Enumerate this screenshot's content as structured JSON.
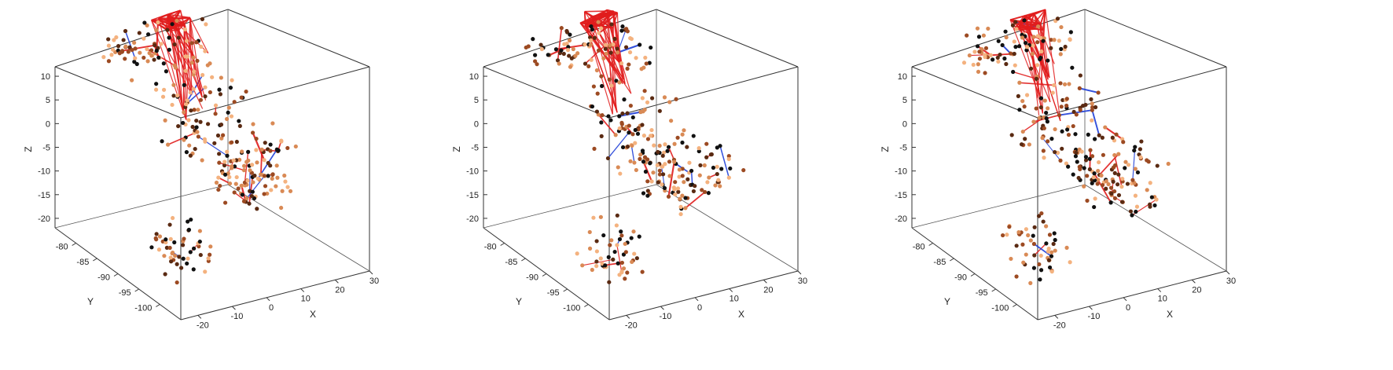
{
  "chart_data": [
    {
      "type": "scatter",
      "projection": "3d",
      "xlabel": "X",
      "ylabel": "Y",
      "zlabel": "Z",
      "xlim": [
        -25,
        30
      ],
      "ylim": [
        -105,
        -75
      ],
      "zlim": [
        -22,
        12
      ],
      "xticks": [
        "-20",
        "-10",
        "0",
        "10",
        "20",
        "30"
      ],
      "yticks": [
        "-80",
        "-85",
        "-90",
        "-95",
        "-100"
      ],
      "zticks": [
        "10",
        "5",
        "0",
        "-5",
        "-10",
        "-15",
        "-20"
      ],
      "node_colors": [
        "#111111",
        "#5a2a12",
        "#9c4a22",
        "#d98a55",
        "#f4b27f"
      ],
      "edge_colors": {
        "positive": "#e11d1d",
        "negative": "#1f3fd8"
      },
      "hub_strength": 1.0,
      "seed": 11
    },
    {
      "type": "scatter",
      "projection": "3d",
      "xlabel": "X",
      "ylabel": "Y",
      "zlabel": "Z",
      "xlim": [
        -25,
        30
      ],
      "ylim": [
        -105,
        -75
      ],
      "zlim": [
        -22,
        12
      ],
      "xticks": [
        "-20",
        "-10",
        "0",
        "10",
        "20",
        "30"
      ],
      "yticks": [
        "-80",
        "-85",
        "-90",
        "-95",
        "-100"
      ],
      "zticks": [
        "10",
        "5",
        "0",
        "-5",
        "-10",
        "-15",
        "-20"
      ],
      "node_colors": [
        "#111111",
        "#5a2a12",
        "#9c4a22",
        "#d98a55",
        "#f4b27f"
      ],
      "edge_colors": {
        "positive": "#e11d1d",
        "negative": "#1f3fd8"
      },
      "hub_strength": 0.85,
      "seed": 23
    },
    {
      "type": "scatter",
      "projection": "3d",
      "xlabel": "X",
      "ylabel": "Y",
      "zlabel": "Z",
      "xlim": [
        -25,
        30
      ],
      "ylim": [
        -105,
        -75
      ],
      "zlim": [
        -22,
        12
      ],
      "xticks": [
        "-20",
        "-10",
        "0",
        "10",
        "20",
        "30"
      ],
      "yticks": [
        "-80",
        "-85",
        "-90",
        "-95",
        "-100"
      ],
      "zticks": [
        "10",
        "5",
        "0",
        "-5",
        "-10",
        "-15",
        "-20"
      ],
      "node_colors": [
        "#111111",
        "#5a2a12",
        "#9c4a22",
        "#d98a55",
        "#f4b27f"
      ],
      "edge_colors": {
        "positive": "#e11d1d",
        "negative": "#1f3fd8"
      },
      "hub_strength": 0.9,
      "seed": 37
    }
  ]
}
